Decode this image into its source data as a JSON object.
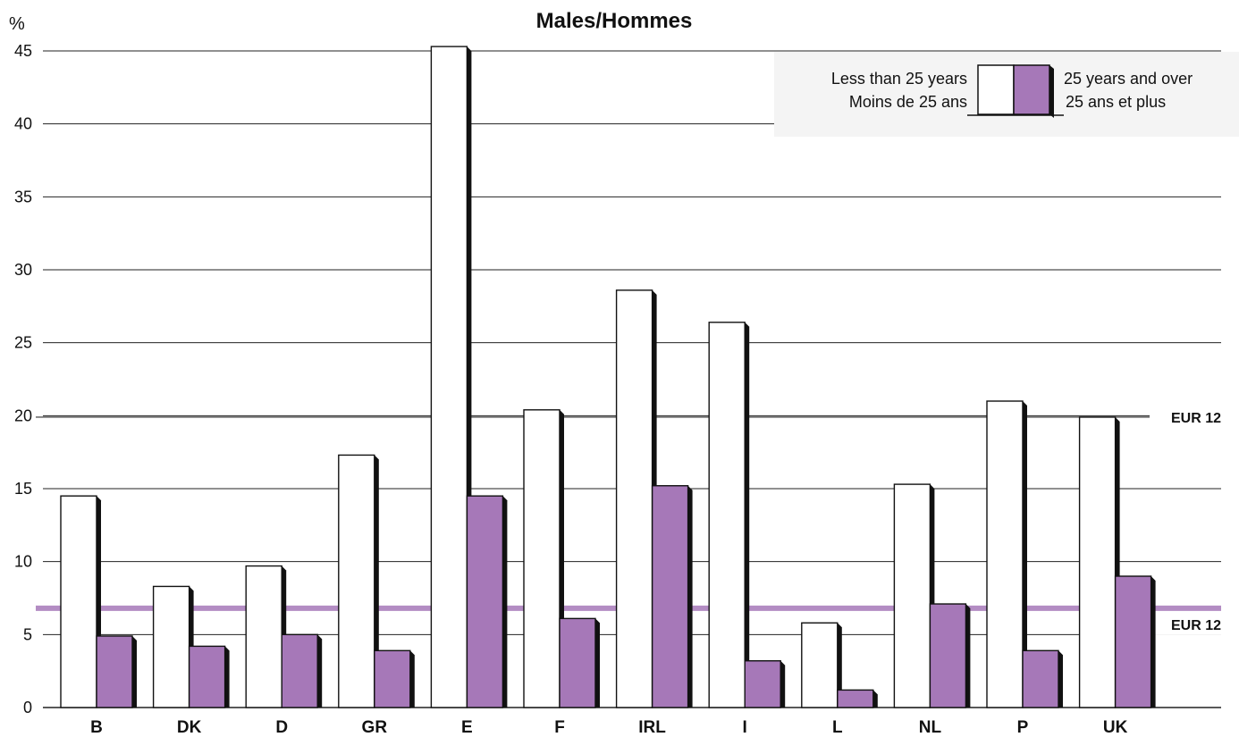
{
  "chart_data": {
    "type": "bar",
    "title": "Males/Hommes",
    "ylabel": "%",
    "ylim": [
      0,
      45
    ],
    "yticks": [
      0,
      5,
      10,
      15,
      20,
      25,
      30,
      35,
      40,
      45
    ],
    "grid": true,
    "legend_position": "top-right",
    "categories": [
      "B",
      "DK",
      "D",
      "GR",
      "E",
      "F",
      "IRL",
      "I",
      "L",
      "NL",
      "P",
      "UK"
    ],
    "series": [
      {
        "name": "Less than 25 years",
        "name_alt": "Moins de 25 ans",
        "color": "#ffffff",
        "values": [
          14.5,
          8.3,
          9.7,
          17.3,
          45.3,
          20.4,
          28.6,
          26.4,
          5.8,
          15.3,
          21.0,
          19.9
        ]
      },
      {
        "name": "25 years and over",
        "name_alt": "25 ans et plus",
        "color": "#a678b8",
        "values": [
          4.9,
          4.2,
          5.0,
          3.9,
          14.5,
          6.1,
          15.2,
          3.2,
          1.2,
          7.1,
          3.9,
          9.0
        ]
      }
    ],
    "reference_lines": [
      {
        "label": "EUR 12",
        "value": 19.9,
        "color": "#555555"
      },
      {
        "label": "EUR 12",
        "value": 6.8,
        "color": "#a678b8"
      }
    ]
  }
}
